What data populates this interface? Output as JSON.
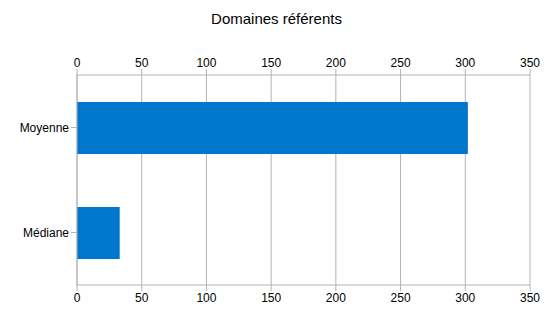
{
  "chart_data": {
    "type": "bar",
    "title": "Domaines référents",
    "categories": [
      "Moyenne",
      "Médiane"
    ],
    "values": [
      302,
      33
    ],
    "color": "#0077cc",
    "orientation": "horizontal",
    "xlim": [
      0,
      350
    ],
    "xticks": [
      0,
      50,
      100,
      150,
      200,
      250,
      300,
      350
    ],
    "grid": true
  }
}
